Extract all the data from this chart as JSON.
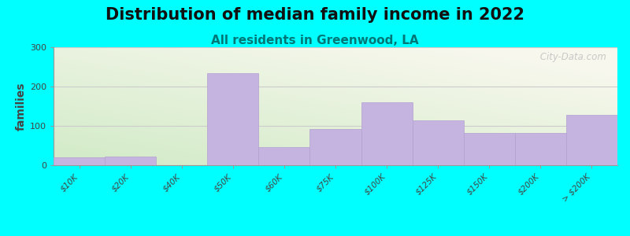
{
  "title": "Distribution of median family income in 2022",
  "subtitle": "All residents in Greenwood, LA",
  "ylabel": "families",
  "categories": [
    "$10K",
    "$20K",
    "$40K",
    "$50K",
    "$60K",
    "$75K",
    "$100K",
    "$125K",
    "$150K",
    "$200K",
    "> $200K"
  ],
  "values": [
    20,
    23,
    0,
    235,
    47,
    93,
    160,
    115,
    83,
    83,
    128
  ],
  "bar_color": "#c5b3e0",
  "bar_edge_color": "#b3a0d0",
  "ylim": [
    0,
    300
  ],
  "yticks": [
    0,
    100,
    200,
    300
  ],
  "bg_green_color": [
    0.82,
    0.92,
    0.78
  ],
  "bg_cream_color": [
    0.97,
    0.97,
    0.93
  ],
  "outer_bg_color": "#00ffff",
  "title_fontsize": 15,
  "subtitle_fontsize": 11,
  "subtitle_color": "#007777",
  "watermark_text": " City-Data.com",
  "watermark_color": "#c0c0c0"
}
